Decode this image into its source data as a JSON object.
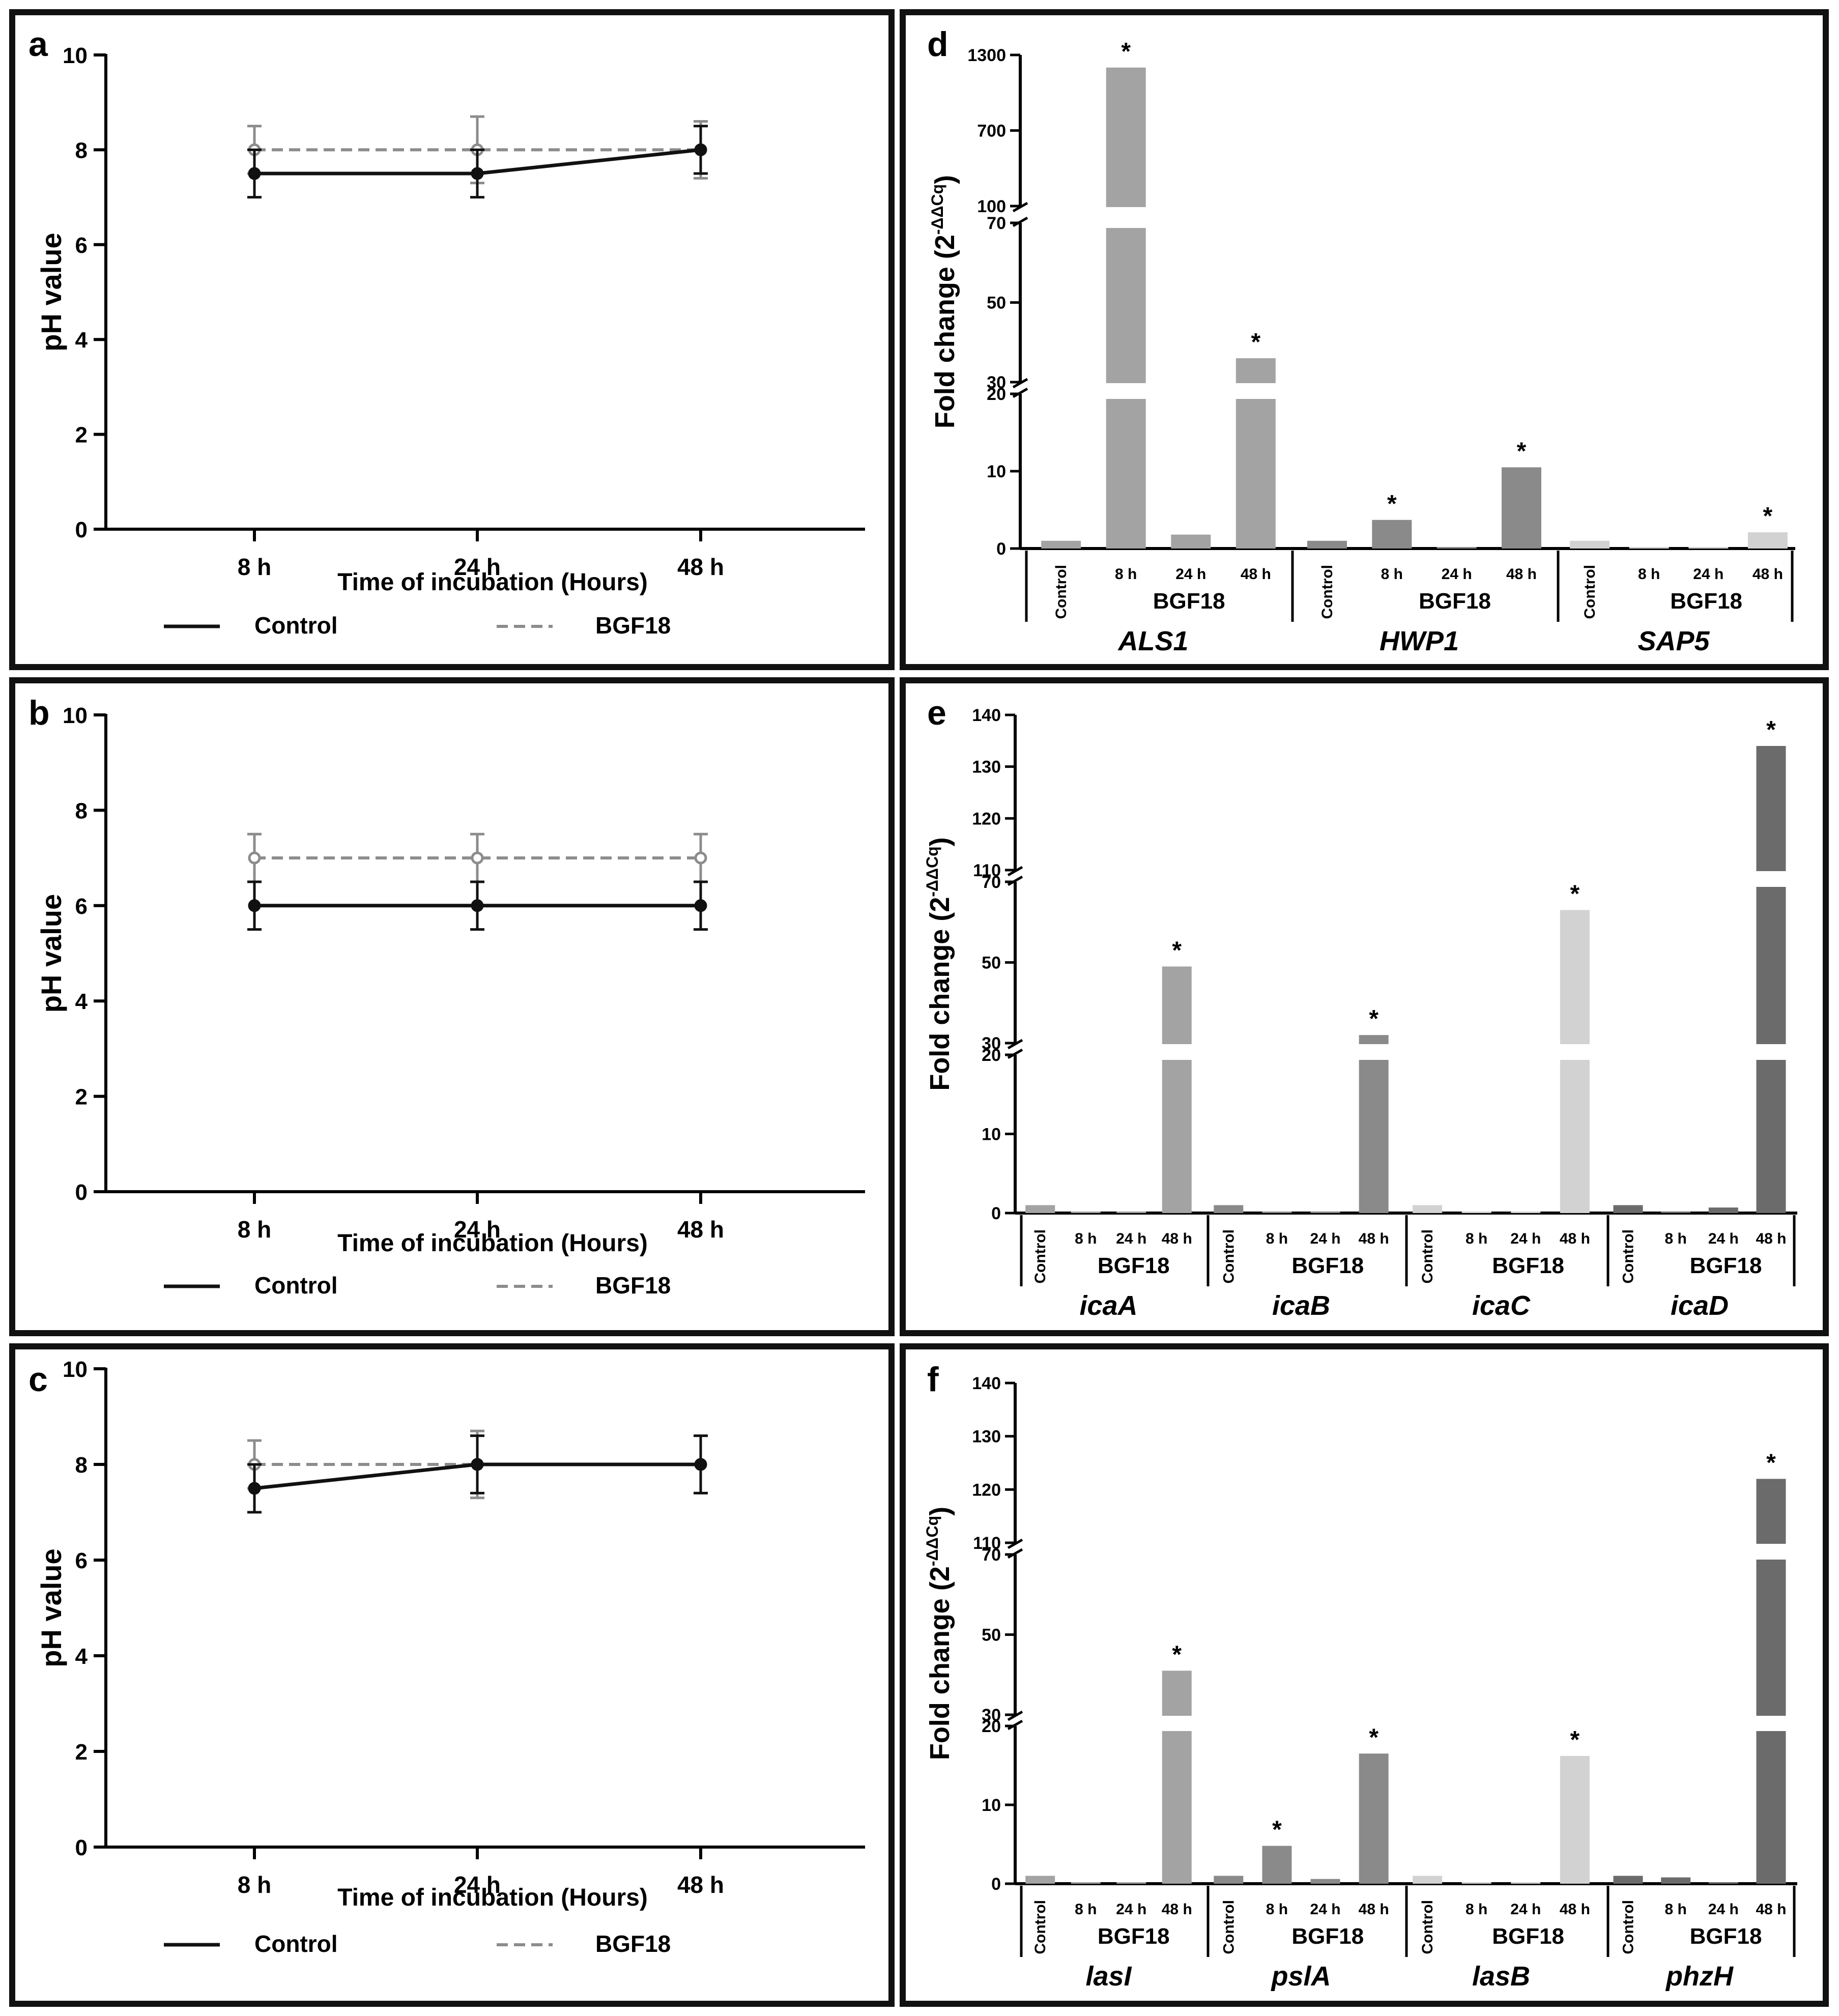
{
  "line_legend": {
    "control": "Control",
    "bgf18": "BGF18"
  },
  "colors": {
    "control_line": "#111111",
    "bgf18_line": "#8c8c8c",
    "bar_light": "#a3a3a3",
    "bar_mid": "#8a8a8a",
    "bar_pale": "#d2d2d2",
    "bar_dark": "#6b6b6b",
    "frame": "#111111"
  },
  "chart_data": [
    {
      "panel": "a",
      "type": "line",
      "ylabel": "pH value",
      "xlabel": "Time of incubation (Hours)",
      "ylim": [
        0,
        10
      ],
      "yticks": [
        0,
        2,
        4,
        6,
        8,
        10
      ],
      "categories": [
        "8 h",
        "24 h",
        "48 h"
      ],
      "series": [
        {
          "name": "Control",
          "values": [
            7.5,
            7.5,
            8.0
          ],
          "errors": [
            0.5,
            0.5,
            0.5
          ]
        },
        {
          "name": "BGF18",
          "values": [
            8.0,
            8.0,
            8.0
          ],
          "errors": [
            0.5,
            0.7,
            0.6
          ]
        }
      ]
    },
    {
      "panel": "b",
      "type": "line",
      "ylabel": "pH value",
      "xlabel": "Time of incubation (Hours)",
      "ylim": [
        0,
        10
      ],
      "yticks": [
        0,
        2,
        4,
        6,
        8,
        10
      ],
      "categories": [
        "8 h",
        "24 h",
        "48 h"
      ],
      "series": [
        {
          "name": "Control",
          "values": [
            6.0,
            6.0,
            6.0
          ],
          "errors": [
            0.5,
            0.5,
            0.5
          ]
        },
        {
          "name": "BGF18",
          "values": [
            7.0,
            7.0,
            7.0
          ],
          "errors": [
            0.5,
            0.5,
            0.5
          ]
        }
      ]
    },
    {
      "panel": "c",
      "type": "line",
      "ylabel": "pH value",
      "xlabel": "Time of incubation (Hours)",
      "ylim": [
        0,
        10
      ],
      "yticks": [
        0,
        2,
        4,
        6,
        8,
        10
      ],
      "categories": [
        "8 h",
        "24 h",
        "48 h"
      ],
      "series": [
        {
          "name": "Control",
          "values": [
            7.5,
            8.0,
            8.0
          ],
          "errors": [
            0.5,
            0.6,
            0.6
          ]
        },
        {
          "name": "BGF18",
          "values": [
            8.0,
            8.0,
            8.0
          ],
          "errors": [
            0.5,
            0.7,
            0.6
          ]
        }
      ]
    },
    {
      "panel": "d",
      "type": "bar",
      "ylabel": "Fold change (2",
      "ylabel_sup": "-ΔΔCq",
      "ylabel_end": ")",
      "axis_segments": [
        {
          "range": [
            0,
            20
          ],
          "ticks": [
            0,
            10,
            20
          ]
        },
        {
          "range": [
            30,
            70
          ],
          "ticks": [
            30,
            50,
            70
          ]
        },
        {
          "range": [
            100,
            1300
          ],
          "ticks": [
            100,
            700,
            1300
          ]
        }
      ],
      "bar_labels": [
        "Control",
        "8 h",
        "24 h",
        "48 h"
      ],
      "treatment_label": "BGF18",
      "groups": [
        {
          "gene": "ALS1",
          "color": "bar_light",
          "values": [
            1,
            1200,
            1.8,
            36
          ],
          "significant": [
            false,
            true,
            false,
            true
          ]
        },
        {
          "gene": "HWP1",
          "color": "bar_mid",
          "values": [
            1,
            3.7,
            0.05,
            10.5
          ],
          "significant": [
            false,
            true,
            false,
            true
          ]
        },
        {
          "gene": "SAP5",
          "color": "bar_pale",
          "values": [
            1,
            0.1,
            0.05,
            2.1
          ],
          "significant": [
            false,
            false,
            false,
            true
          ]
        }
      ],
      "sig_marker": "*"
    },
    {
      "panel": "e",
      "type": "bar",
      "ylabel": "Fold change (2",
      "ylabel_sup": "-ΔΔCq",
      "ylabel_end": ")",
      "axis_segments": [
        {
          "range": [
            0,
            20
          ],
          "ticks": [
            0,
            10,
            20
          ]
        },
        {
          "range": [
            30,
            70
          ],
          "ticks": [
            30,
            50,
            70
          ]
        },
        {
          "range": [
            110,
            140
          ],
          "ticks": [
            110,
            120,
            130,
            140
          ]
        }
      ],
      "bar_labels": [
        "Control",
        "8 h",
        "24 h",
        "48 h"
      ],
      "treatment_label": "BGF18",
      "groups": [
        {
          "gene": "icaA",
          "color": "bar_light",
          "values": [
            1,
            0.05,
            0.2,
            49
          ],
          "significant": [
            false,
            false,
            false,
            true
          ]
        },
        {
          "gene": "icaB",
          "color": "bar_mid",
          "values": [
            1,
            0.05,
            0.2,
            32
          ],
          "significant": [
            false,
            false,
            false,
            true
          ]
        },
        {
          "gene": "icaC",
          "color": "bar_pale",
          "values": [
            1,
            0.05,
            0.1,
            63
          ],
          "significant": [
            false,
            false,
            false,
            true
          ]
        },
        {
          "gene": "icaD",
          "color": "bar_dark",
          "values": [
            1,
            0.05,
            0.7,
            134
          ],
          "significant": [
            false,
            false,
            false,
            true
          ]
        }
      ],
      "sig_marker": "*"
    },
    {
      "panel": "f",
      "type": "bar",
      "ylabel": "Fold change (2",
      "ylabel_sup": "-ΔΔCq",
      "ylabel_end": ")",
      "axis_segments": [
        {
          "range": [
            0,
            20
          ],
          "ticks": [
            0,
            10,
            20
          ]
        },
        {
          "range": [
            30,
            70
          ],
          "ticks": [
            30,
            50,
            70
          ]
        },
        {
          "range": [
            110,
            140
          ],
          "ticks": [
            110,
            120,
            130,
            140
          ]
        }
      ],
      "bar_labels": [
        "Control",
        "8 h",
        "24 h",
        "48 h"
      ],
      "treatment_label": "BGF18",
      "groups": [
        {
          "gene": "lasI",
          "color": "bar_light",
          "values": [
            1,
            0.2,
            0.05,
            41
          ],
          "significant": [
            false,
            false,
            false,
            true
          ]
        },
        {
          "gene": "pslA",
          "color": "bar_mid",
          "values": [
            1,
            4.8,
            0.6,
            16.5
          ],
          "significant": [
            false,
            true,
            false,
            true
          ]
        },
        {
          "gene": "lasB",
          "color": "bar_pale",
          "values": [
            1,
            0.05,
            0.05,
            16.2
          ],
          "significant": [
            false,
            false,
            false,
            true
          ]
        },
        {
          "gene": "phzH",
          "color": "bar_dark",
          "values": [
            1,
            0.8,
            0.05,
            122
          ],
          "significant": [
            false,
            false,
            false,
            true
          ]
        }
      ],
      "sig_marker": "*"
    }
  ]
}
